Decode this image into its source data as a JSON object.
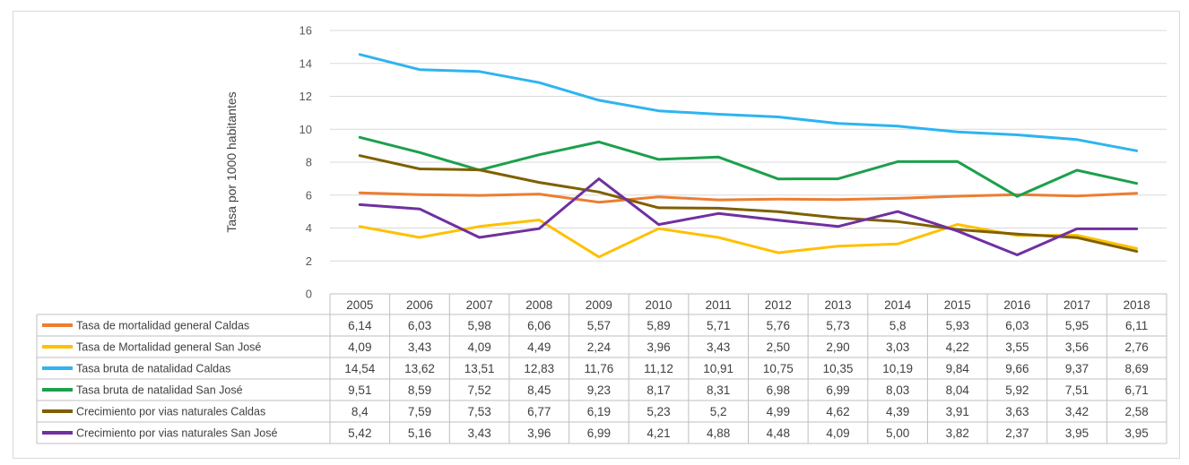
{
  "chart_data": {
    "type": "line",
    "title": "",
    "xlabel": "",
    "ylabel": "Tasa por 1000 habitantes",
    "ylim": [
      0,
      16
    ],
    "yticks": [
      "0",
      "2",
      "4",
      "6",
      "8",
      "10",
      "12",
      "14",
      "16"
    ],
    "grid": true,
    "legend": "data-table",
    "categories": [
      "2005",
      "2006",
      "2007",
      "2008",
      "2009",
      "2010",
      "2011",
      "2012",
      "2013",
      "2014",
      "2015",
      "2016",
      "2017",
      "2018"
    ],
    "series": [
      {
        "name": "Tasa de mortalidad general Caldas",
        "color": "#ED7D31",
        "values": [
          6.14,
          6.03,
          5.98,
          6.06,
          5.57,
          5.89,
          5.71,
          5.76,
          5.73,
          5.8,
          5.93,
          6.03,
          5.95,
          6.11
        ],
        "labels": [
          "6,14",
          "6,03",
          "5,98",
          "6,06",
          "5,57",
          "5,89",
          "5,71",
          "5,76",
          "5,73",
          "5,8",
          "5,93",
          "6,03",
          "5,95",
          "6,11"
        ]
      },
      {
        "name": "Tasa de Mortalidad general San José",
        "color": "#FFC000",
        "values": [
          4.09,
          3.43,
          4.09,
          4.49,
          2.24,
          3.96,
          3.43,
          2.5,
          2.9,
          3.03,
          4.22,
          3.55,
          3.56,
          2.76
        ],
        "labels": [
          "4,09",
          "3,43",
          "4,09",
          "4,49",
          "2,24",
          "3,96",
          "3,43",
          "2,50",
          "2,90",
          "3,03",
          "4,22",
          "3,55",
          "3,56",
          "2,76"
        ]
      },
      {
        "name": "Tasa bruta de natalidad Caldas",
        "color": "#2EB4F0",
        "values": [
          14.54,
          13.62,
          13.51,
          12.83,
          11.76,
          11.12,
          10.91,
          10.75,
          10.35,
          10.19,
          9.84,
          9.66,
          9.37,
          8.69
        ],
        "labels": [
          "14,54",
          "13,62",
          "13,51",
          "12,83",
          "11,76",
          "11,12",
          "10,91",
          "10,75",
          "10,35",
          "10,19",
          "9,84",
          "9,66",
          "9,37",
          "8,69"
        ]
      },
      {
        "name": "Tasa bruta de natalidad San José",
        "color": "#1CA04C",
        "values": [
          9.51,
          8.59,
          7.52,
          8.45,
          9.23,
          8.17,
          8.31,
          6.98,
          6.99,
          8.03,
          8.04,
          5.92,
          7.51,
          6.71
        ],
        "labels": [
          "9,51",
          "8,59",
          "7,52",
          "8,45",
          "9,23",
          "8,17",
          "8,31",
          "6,98",
          "6,99",
          "8,03",
          "8,04",
          "5,92",
          "7,51",
          "6,71"
        ]
      },
      {
        "name": "Crecimiento por vias naturales Caldas",
        "color": "#7F6000",
        "values": [
          8.4,
          7.59,
          7.53,
          6.77,
          6.19,
          5.23,
          5.2,
          4.99,
          4.62,
          4.39,
          3.91,
          3.63,
          3.42,
          2.58
        ],
        "labels": [
          "8,4",
          "7,59",
          "7,53",
          "6,77",
          "6,19",
          "5,23",
          "5,2",
          "4,99",
          "4,62",
          "4,39",
          "3,91",
          "3,63",
          "3,42",
          "2,58"
        ]
      },
      {
        "name": "Crecimiento por vias naturales San José",
        "color": "#7030A0",
        "values": [
          5.42,
          5.16,
          3.43,
          3.96,
          6.99,
          4.21,
          4.88,
          4.48,
          4.09,
          5.0,
          3.82,
          2.37,
          3.95,
          3.95
        ],
        "labels": [
          "5,42",
          "5,16",
          "3,43",
          "3,96",
          "6,99",
          "4,21",
          "4,88",
          "4,48",
          "4,09",
          "5,00",
          "3,82",
          "2,37",
          "3,95",
          "3,95"
        ]
      }
    ]
  }
}
